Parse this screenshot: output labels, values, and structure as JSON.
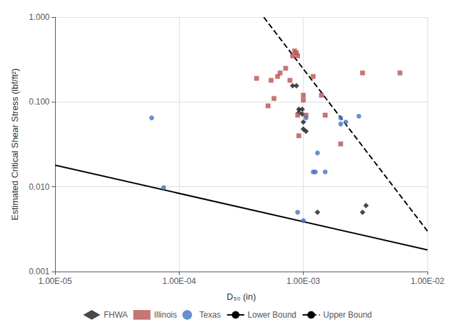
{
  "chart_data": {
    "type": "scatter",
    "xlabel": "D₅₀ (in)",
    "ylabel": "Estimated Critical Shear Stress (lbf/ft²)",
    "log": true,
    "grid": true,
    "legend": "bottom",
    "xlim": [
      1e-05,
      0.01
    ],
    "ylim": [
      0.001,
      1.0
    ],
    "xticks": [
      {
        "value": 1e-05,
        "label": "1.00E-05"
      },
      {
        "value": 0.0001,
        "label": "1.00E-04"
      },
      {
        "value": 0.001,
        "label": "1.00E-03"
      },
      {
        "value": 0.01,
        "label": "1.00E-02"
      }
    ],
    "yticks": [
      0.001,
      {
        "value": 0.01,
        "label": "0.010"
      },
      {
        "value": 0.1,
        "label": "0.100"
      },
      {
        "value": 1.0,
        "label": "1.000"
      }
    ],
    "series": [
      {
        "name": "FHWA",
        "type": "scatter",
        "marker": "diamond",
        "color": "#1a1a1a",
        "x": [
          0.00082,
          0.00088,
          0.00092,
          0.00092,
          0.00098,
          0.00098,
          0.001,
          0.001,
          0.00105,
          0.0013,
          0.003,
          0.0032
        ],
        "values": [
          0.155,
          0.155,
          0.082,
          0.075,
          0.082,
          0.072,
          0.058,
          0.048,
          0.045,
          0.005,
          0.005,
          0.006
        ]
      },
      {
        "name": "Illinois",
        "type": "scatter",
        "marker": "square",
        "color": "#b85450",
        "x": [
          0.00042,
          0.00052,
          0.00055,
          0.00058,
          0.00062,
          0.00065,
          0.00072,
          0.00078,
          0.00082,
          0.00085,
          0.00088,
          0.0009,
          0.0009,
          0.00092,
          0.001,
          0.001,
          0.00105,
          0.0012,
          0.0014,
          0.0015,
          0.002,
          0.003,
          0.006
        ],
        "values": [
          0.19,
          0.09,
          0.18,
          0.11,
          0.2,
          0.22,
          0.25,
          0.18,
          0.35,
          0.4,
          0.38,
          0.35,
          0.07,
          0.04,
          0.12,
          0.105,
          0.07,
          0.2,
          0.12,
          0.07,
          0.032,
          0.22,
          0.22
        ]
      },
      {
        "name": "Texas",
        "type": "scatter",
        "marker": "circle",
        "color": "#4472c4",
        "x": [
          6e-05,
          7.5e-05,
          0.0009,
          0.001,
          0.00105,
          0.0012,
          0.00125,
          0.0013,
          0.0015,
          0.002,
          0.002,
          0.0022,
          0.0028
        ],
        "values": [
          0.065,
          0.0098,
          0.005,
          0.004,
          0.065,
          0.015,
          0.015,
          0.025,
          0.015,
          0.065,
          0.055,
          0.058,
          0.068
        ]
      },
      {
        "name": "Lower Bound",
        "type": "line",
        "line_style": "solid",
        "color": "#000000",
        "x": [
          1e-05,
          0.01
        ],
        "values": [
          0.018,
          0.0018
        ]
      },
      {
        "name": "Upper Bound",
        "type": "line",
        "line_style": "dashed",
        "color": "#000000",
        "x": [
          0.00048,
          0.01
        ],
        "values": [
          1.0,
          0.003
        ]
      }
    ]
  }
}
